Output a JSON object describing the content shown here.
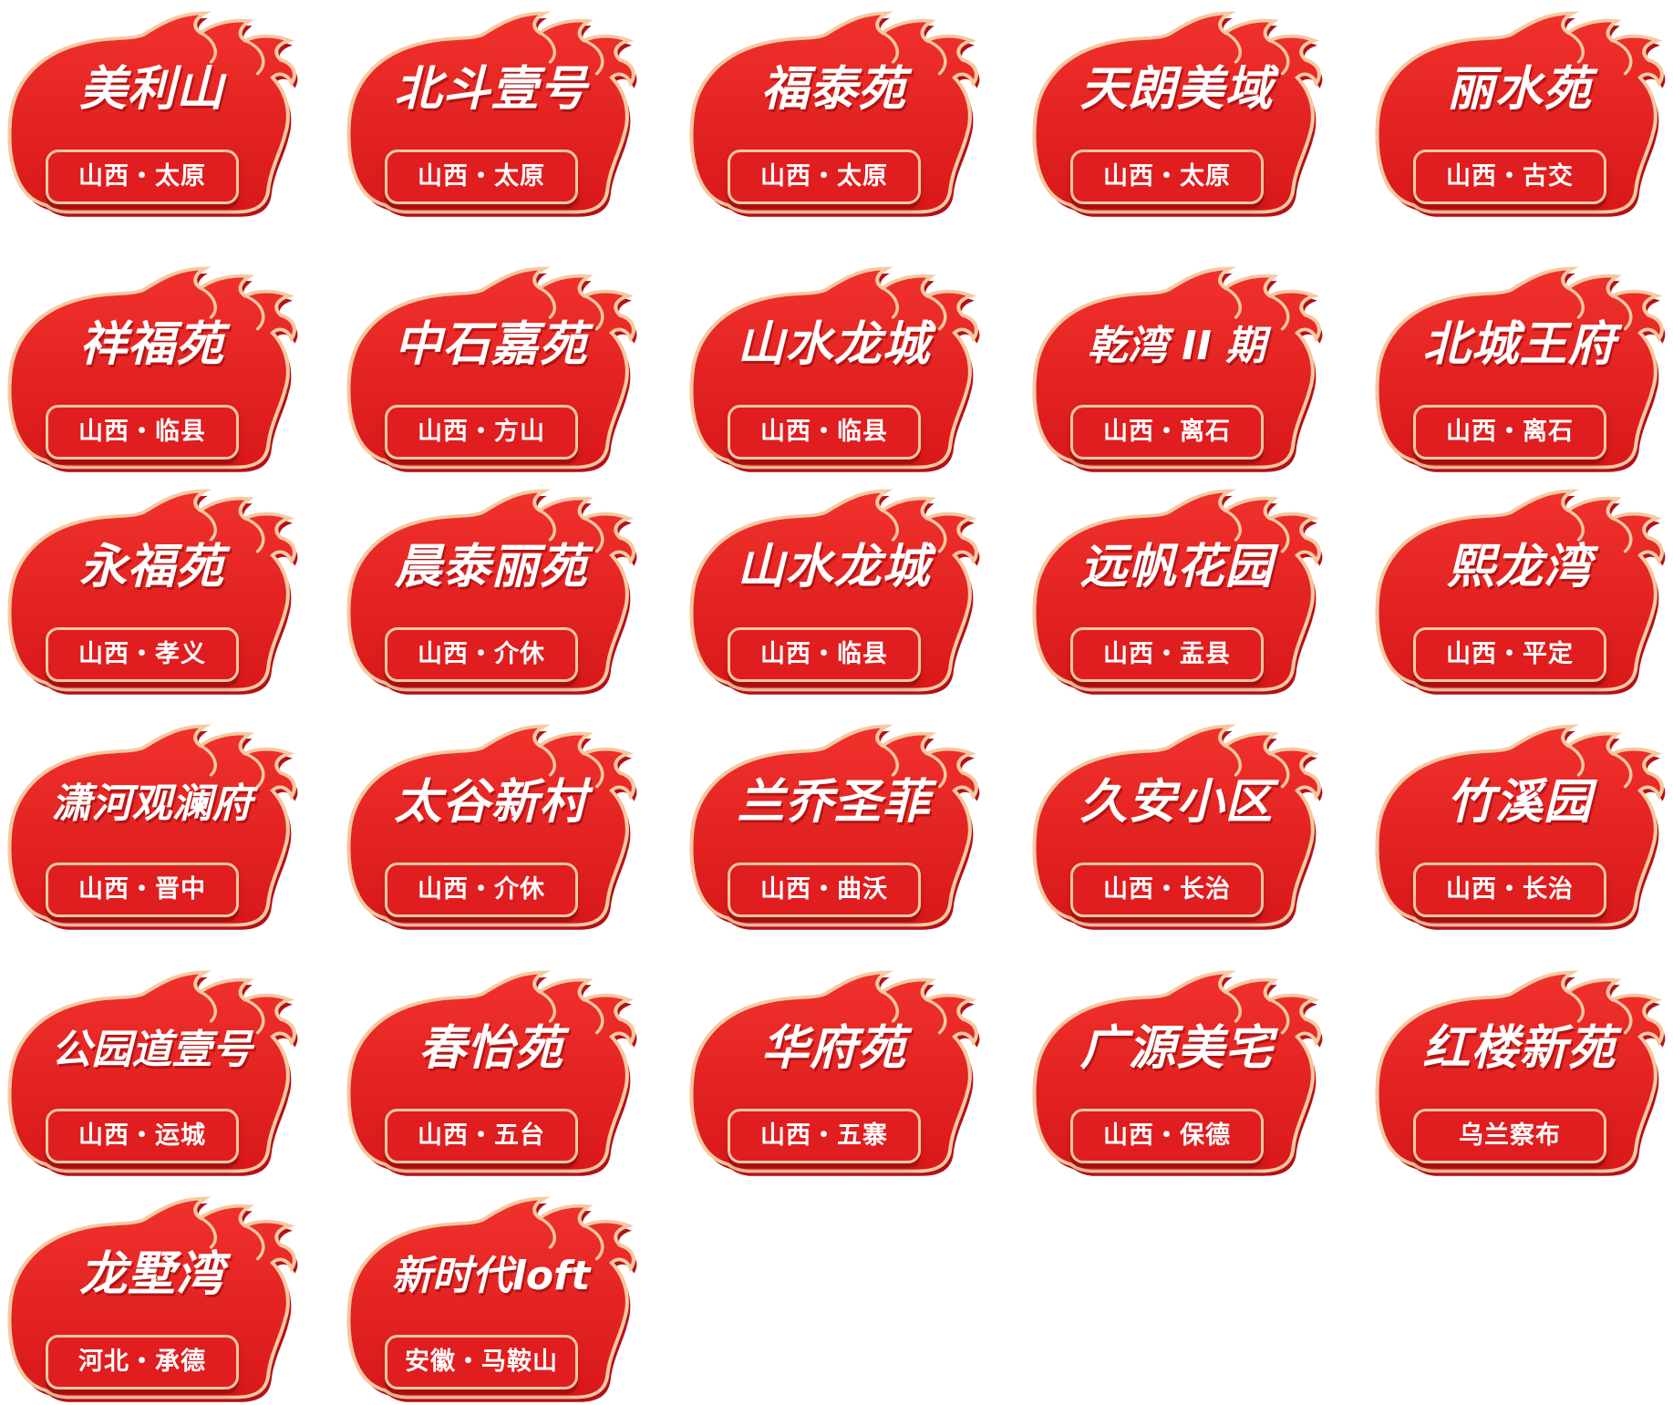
{
  "colors": {
    "flame_fill": "#e8201f",
    "flame_edge": "#f6c9a1",
    "shadow": "#b3111a",
    "text": "#ffffff"
  },
  "badges": [
    {
      "name": "美利山",
      "location": "山西・太原"
    },
    {
      "name": "北斗壹号",
      "location": "山西・太原"
    },
    {
      "name": "福泰苑",
      "location": "山西・太原"
    },
    {
      "name": "天朗美域",
      "location": "山西・太原"
    },
    {
      "name": "丽水苑",
      "location": "山西・古交"
    },
    {
      "name": "祥福苑",
      "location": "山西・临县"
    },
    {
      "name": "中石嘉苑",
      "location": "山西・方山"
    },
    {
      "name": "山水龙城",
      "location": "山西・临县"
    },
    {
      "name": "乾湾 II 期",
      "location": "山西・离石"
    },
    {
      "name": "北城王府",
      "location": "山西・离石"
    },
    {
      "name": "永福苑",
      "location": "山西・孝义"
    },
    {
      "name": "晨泰丽苑",
      "location": "山西・介休"
    },
    {
      "name": "山水龙城",
      "location": "山西・临县"
    },
    {
      "name": "远帆花园",
      "location": "山西・盂县"
    },
    {
      "name": "熙龙湾",
      "location": "山西・平定"
    },
    {
      "name": "潇河观澜府",
      "location": "山西・晋中"
    },
    {
      "name": "太谷新村",
      "location": "山西・介休"
    },
    {
      "name": "兰乔圣菲",
      "location": "山西・曲沃"
    },
    {
      "name": "久安小区",
      "location": "山西・长治"
    },
    {
      "name": "竹溪园",
      "location": "山西・长治"
    },
    {
      "name": "公园道壹号",
      "location": "山西・运城"
    },
    {
      "name": "春怡苑",
      "location": "山西・五台"
    },
    {
      "name": "华府苑",
      "location": "山西・五寨"
    },
    {
      "name": "广源美宅",
      "location": "山西・保德"
    },
    {
      "name": "红楼新苑",
      "location": "乌兰察布"
    },
    {
      "name": "龙墅湾",
      "location": "河北・承德"
    },
    {
      "name": "新时代loft",
      "location": "安徽・马鞍山"
    }
  ]
}
